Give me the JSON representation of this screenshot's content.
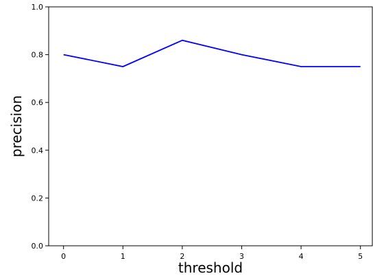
{
  "chart_data": {
    "type": "line",
    "title": "",
    "xlabel": "threshold",
    "ylabel": "precision",
    "x": [
      0,
      1,
      2,
      3,
      4,
      5
    ],
    "series": [
      {
        "values": [
          0.8,
          0.75,
          0.86,
          0.8,
          0.75,
          0.75
        ],
        "color": "#0000ff"
      }
    ],
    "xlim": [
      -0.25,
      5.2
    ],
    "ylim": [
      0.0,
      1.0
    ],
    "xticks": [
      "0",
      "1",
      "2",
      "3",
      "4",
      "5"
    ],
    "yticks": [
      "0.0",
      "0.2",
      "0.4",
      "0.6",
      "0.8",
      "1.0"
    ],
    "grid": false,
    "legend": "none"
  }
}
